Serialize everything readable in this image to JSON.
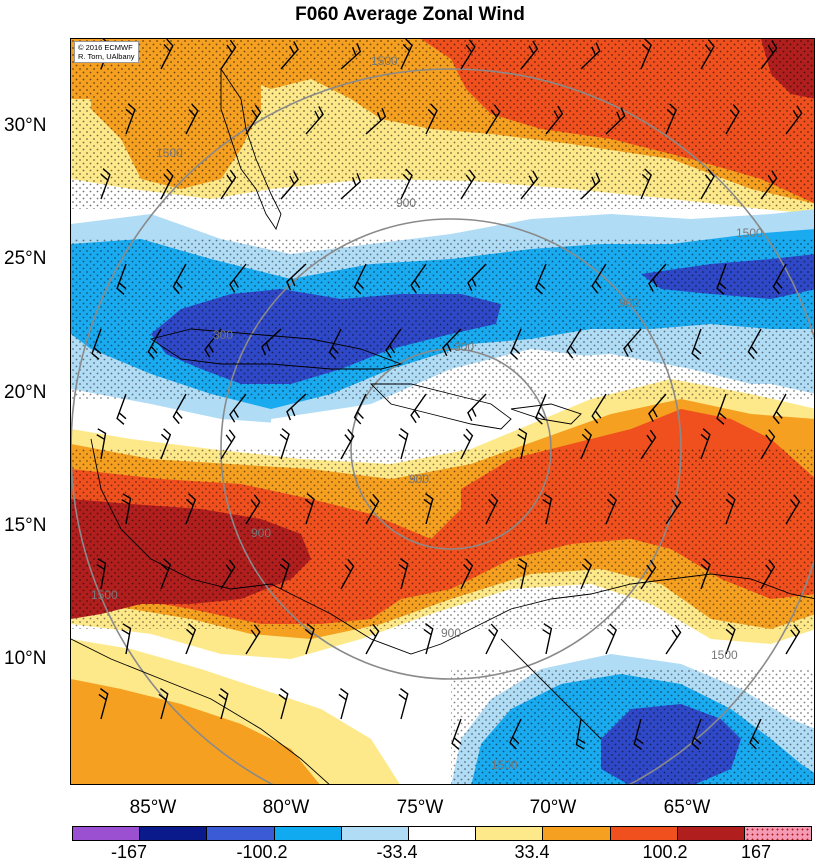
{
  "title": "F060 Average Zonal Wind",
  "credit": {
    "line1": "© 2016 ECMWF",
    "line2": "R. Torn, UAlbany"
  },
  "lat_labels": [
    "30°N",
    "25°N",
    "20°N",
    "15°N",
    "10°N"
  ],
  "lon_labels": [
    "85°W",
    "80°W",
    "75°W",
    "70°W",
    "65°W"
  ],
  "range_ring_labels": [
    "1500",
    "900",
    "300",
    "900",
    "1500",
    "900",
    "1500",
    "300",
    "900",
    "1500",
    "1500",
    "900",
    "1500"
  ],
  "colorbar": {
    "colors": [
      "#9b4fd1",
      "#0a1a8a",
      "#3a5ad6",
      "#10aaf0",
      "#b0dcf5",
      "#ffffff",
      "#fde98a",
      "#f5a020",
      "#f0501e",
      "#b01e1e",
      "#f59ab4"
    ],
    "labels": [
      "-167",
      "-100.2",
      "-33.4",
      "33.4",
      "100.2",
      "167"
    ]
  },
  "colors": {
    "strong_east": "#2f48c7",
    "east": "#19aaf0",
    "weak_east": "#b0dcf5",
    "neutral": "#ffffff",
    "weak_west": "#fde98a",
    "west": "#f5a020",
    "strong_west": "#f0501e",
    "very_strong_west": "#b01e1e"
  }
}
